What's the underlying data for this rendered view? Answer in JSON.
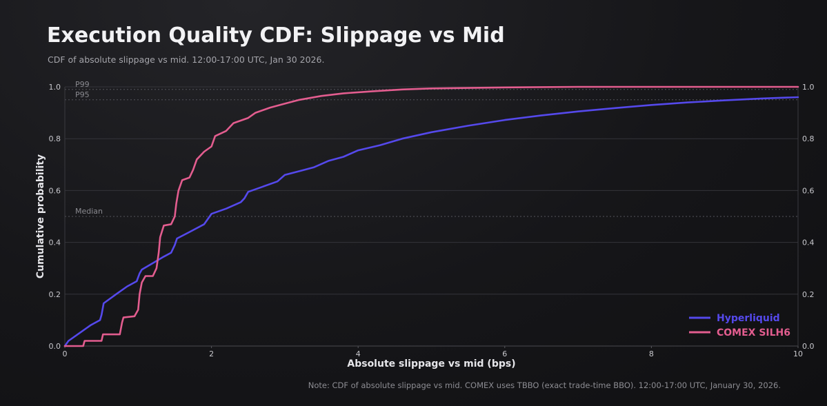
{
  "header": {
    "title": "Execution Quality CDF: Slippage vs Mid",
    "subtitle": "CDF of absolute slippage vs mid. 12:00-17:00 UTC, Jan 30 2026."
  },
  "footer": {
    "note": "Note: CDF of absolute slippage vs mid. COMEX uses TBBO (exact trade-time BBO). 12:00-17:00 UTC, January 30, 2026."
  },
  "chart_data": {
    "type": "line",
    "xlabel": "Absolute slippage vs mid (bps)",
    "ylabel": "Cumulative probability",
    "xlim": [
      0,
      10
    ],
    "ylim": [
      0,
      1
    ],
    "x_ticks": [
      "0",
      "2",
      "4",
      "6",
      "8",
      "10"
    ],
    "y_ticks": [
      "0.0",
      "0.2",
      "0.4",
      "0.6",
      "0.8",
      "1.0"
    ],
    "secondary_y_axis": true,
    "grid": "horizontal",
    "legend_position": "bottom-right",
    "reference_lines": [
      {
        "label": "P99",
        "y": 0.99
      },
      {
        "label": "P95",
        "y": 0.95
      },
      {
        "label": "Median",
        "y": 0.5
      }
    ],
    "series": [
      {
        "name": "Hyperliquid",
        "color": "#5549ec",
        "points": [
          [
            0.0,
            0.0
          ],
          [
            0.05,
            0.02
          ],
          [
            0.2,
            0.05
          ],
          [
            0.35,
            0.08
          ],
          [
            0.48,
            0.1
          ],
          [
            0.5,
            0.12
          ],
          [
            0.53,
            0.165
          ],
          [
            0.7,
            0.2
          ],
          [
            0.85,
            0.23
          ],
          [
            0.98,
            0.25
          ],
          [
            1.02,
            0.28
          ],
          [
            1.05,
            0.295
          ],
          [
            1.2,
            0.32
          ],
          [
            1.35,
            0.345
          ],
          [
            1.45,
            0.36
          ],
          [
            1.5,
            0.39
          ],
          [
            1.53,
            0.415
          ],
          [
            1.7,
            0.44
          ],
          [
            1.9,
            0.47
          ],
          [
            1.95,
            0.49
          ],
          [
            2.0,
            0.51
          ],
          [
            2.2,
            0.53
          ],
          [
            2.4,
            0.555
          ],
          [
            2.45,
            0.57
          ],
          [
            2.5,
            0.595
          ],
          [
            2.7,
            0.615
          ],
          [
            2.9,
            0.635
          ],
          [
            3.0,
            0.66
          ],
          [
            3.2,
            0.675
          ],
          [
            3.4,
            0.69
          ],
          [
            3.6,
            0.715
          ],
          [
            3.8,
            0.73
          ],
          [
            4.0,
            0.755
          ],
          [
            4.3,
            0.775
          ],
          [
            4.6,
            0.8
          ],
          [
            5.0,
            0.825
          ],
          [
            5.5,
            0.85
          ],
          [
            6.0,
            0.872
          ],
          [
            6.5,
            0.89
          ],
          [
            7.0,
            0.905
          ],
          [
            7.5,
            0.918
          ],
          [
            8.0,
            0.93
          ],
          [
            8.5,
            0.94
          ],
          [
            9.0,
            0.948
          ],
          [
            9.5,
            0.955
          ],
          [
            10.0,
            0.96
          ]
        ]
      },
      {
        "name": "COMEX SILH6",
        "color": "#e35d8f",
        "points": [
          [
            0.0,
            0.0
          ],
          [
            0.25,
            0.0
          ],
          [
            0.27,
            0.02
          ],
          [
            0.5,
            0.02
          ],
          [
            0.52,
            0.045
          ],
          [
            0.75,
            0.045
          ],
          [
            0.78,
            0.09
          ],
          [
            0.8,
            0.11
          ],
          [
            0.95,
            0.115
          ],
          [
            1.0,
            0.14
          ],
          [
            1.02,
            0.2
          ],
          [
            1.05,
            0.245
          ],
          [
            1.1,
            0.27
          ],
          [
            1.2,
            0.27
          ],
          [
            1.25,
            0.3
          ],
          [
            1.28,
            0.36
          ],
          [
            1.3,
            0.42
          ],
          [
            1.35,
            0.465
          ],
          [
            1.45,
            0.47
          ],
          [
            1.5,
            0.5
          ],
          [
            1.52,
            0.55
          ],
          [
            1.55,
            0.6
          ],
          [
            1.6,
            0.64
          ],
          [
            1.7,
            0.65
          ],
          [
            1.75,
            0.68
          ],
          [
            1.8,
            0.72
          ],
          [
            1.9,
            0.75
          ],
          [
            2.0,
            0.77
          ],
          [
            2.05,
            0.81
          ],
          [
            2.2,
            0.83
          ],
          [
            2.3,
            0.86
          ],
          [
            2.5,
            0.88
          ],
          [
            2.6,
            0.9
          ],
          [
            2.8,
            0.92
          ],
          [
            3.0,
            0.935
          ],
          [
            3.2,
            0.95
          ],
          [
            3.5,
            0.965
          ],
          [
            3.8,
            0.975
          ],
          [
            4.2,
            0.983
          ],
          [
            4.6,
            0.99
          ],
          [
            5.0,
            0.994
          ],
          [
            6.0,
            0.998
          ],
          [
            7.0,
            1.0
          ],
          [
            10.0,
            1.0
          ]
        ]
      }
    ]
  }
}
